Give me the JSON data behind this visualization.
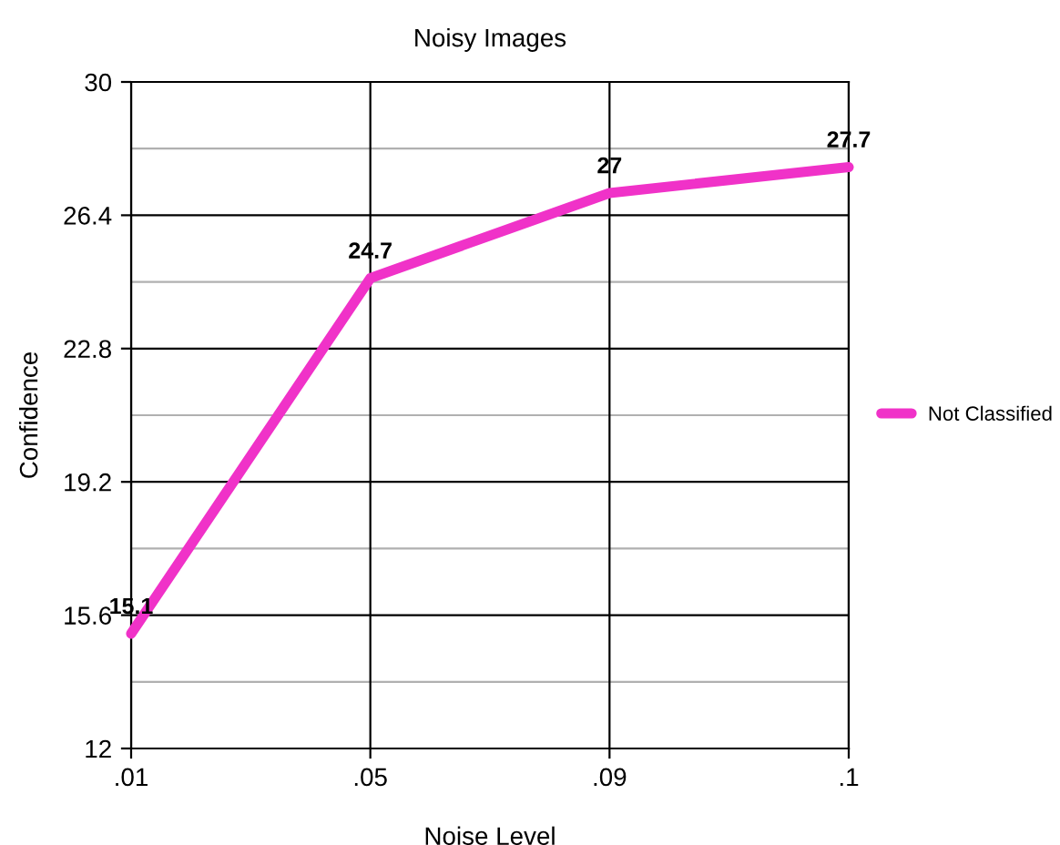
{
  "chart_data": {
    "type": "line",
    "title": "Noisy Images",
    "xlabel": "Noise Level",
    "ylabel": "Confidence",
    "categories": [
      ".01",
      ".05",
      ".09",
      ".1"
    ],
    "series": [
      {
        "name": "Not Classified",
        "color": "#f032c8",
        "values": [
          15.1,
          24.7,
          27,
          27.7
        ]
      }
    ],
    "ylim": [
      12,
      30
    ],
    "yticks": [
      12,
      15.6,
      19.2,
      22.8,
      26.4,
      30
    ],
    "grid": true,
    "legend": "right",
    "data_labels": true,
    "marker": "none",
    "line_style": "solid"
  }
}
